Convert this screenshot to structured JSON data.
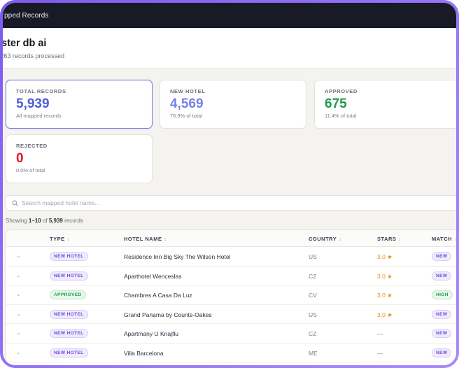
{
  "topbar": {
    "title": "pped Records"
  },
  "header": {
    "title": "ster db ai",
    "subtitle": ",263 records processed"
  },
  "cards": [
    {
      "label": "TOTAL RECORDS",
      "value": "5,939",
      "note": "All mapped records",
      "color": "#4f5fd6"
    },
    {
      "label": "NEW HOTEL",
      "value": "4,569",
      "note": "76.9% of total",
      "color": "#7583e6"
    },
    {
      "label": "APPROVED",
      "value": "675",
      "note": "11.4% of total",
      "color": "#1f9b49"
    },
    {
      "label": "REJECTED",
      "value": "0",
      "note": "0.0% of total",
      "color": "#e11d2a"
    }
  ],
  "search": {
    "placeholder": "Search mapped hotel name..."
  },
  "showing": {
    "prefix": "Showing ",
    "range": "1–10",
    "of": " of ",
    "total": "5,939",
    "suffix": " records"
  },
  "table": {
    "headers": {
      "type": "TYPE",
      "hotel_name": "HOTEL NAME",
      "country": "COUNTRY",
      "stars": "STARS",
      "match": "MATCH"
    },
    "sort_glyph": "↕",
    "rows": [
      {
        "type": "NEW HOTEL",
        "name": "Residence Inn Big Sky The Wilson Hotel",
        "country": "US",
        "stars": "3.0 ★",
        "match": "NEW"
      },
      {
        "type": "NEW HOTEL",
        "name": "Aparthotel Wenceslas",
        "country": "CZ",
        "stars": "3.0 ★",
        "match": "NEW"
      },
      {
        "type": "APPROVED",
        "name": "Chambres A Casa Da Luz",
        "country": "CV",
        "stars": "3.0 ★",
        "match": "HIGH"
      },
      {
        "type": "NEW HOTEL",
        "name": "Grand Panama by Counts-Oakes",
        "country": "US",
        "stars": "3.0 ★",
        "match": "NEW"
      },
      {
        "type": "NEW HOTEL",
        "name": "Apartmany U Knajflu",
        "country": "CZ",
        "stars": "—",
        "match": "NEW"
      },
      {
        "type": "NEW HOTEL",
        "name": "Villa Barcelona",
        "country": "ME",
        "stars": "—",
        "match": "NEW"
      }
    ]
  },
  "icons": {
    "search": "search-icon",
    "expand": "chevron-down-icon"
  }
}
